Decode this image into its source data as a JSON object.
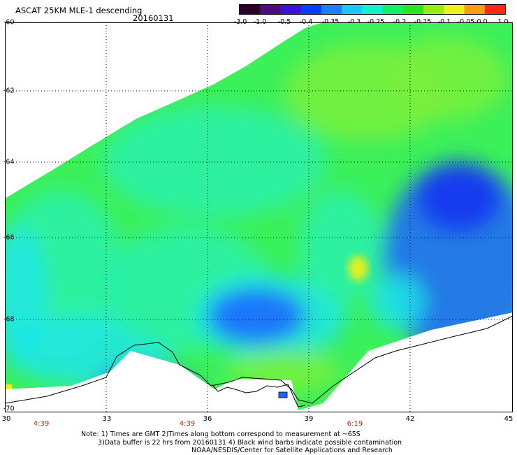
{
  "title": "ASCAT 25KM MLE-1 descending",
  "date": "20160131",
  "colorbar": {
    "ticks": [
      "-3.0",
      "-1.0",
      "-0.5",
      "-0.4",
      "-0.35",
      "-0.3",
      "-0.25",
      "-0.2",
      "-0.15",
      "-0.1",
      "-0.05",
      "0.0",
      "1.0"
    ],
    "colors": [
      "#2a002a",
      "#4b0b82",
      "#3a14d6",
      "#0a3cff",
      "#1e7cff",
      "#19c8ff",
      "#14f0c8",
      "#14f064",
      "#2ae61e",
      "#9bea10",
      "#f0f01e",
      "#ff9a14",
      "#ff2a14"
    ]
  },
  "map": {
    "lat_labels": [
      "-60",
      "-62",
      "-64",
      "-66",
      "-68",
      "-70"
    ],
    "lon_labels": [
      "30",
      "33",
      "36",
      "39",
      "42",
      "45"
    ],
    "time_labels": [
      "4:39",
      "4:39",
      "6:19"
    ],
    "colors": {
      "swath_green": "#3cf05a",
      "light_green": "#7af03c",
      "cyan_green": "#28f0aa",
      "cyan": "#1ee6e6",
      "blue": "#1e64ff",
      "deep_blue": "#1432f0",
      "yellow": "#e6f01e"
    }
  },
  "notes": [
    "Note: 1) Times are GMT 2)Times along bottom correspond to measurement at ~65S",
    "3)Data buffer is 22 hrs from 20160131 4) Black wind barbs indicate possible contamination",
    "NOAA/NESDIS/Center for Satellite Applications and Research"
  ]
}
